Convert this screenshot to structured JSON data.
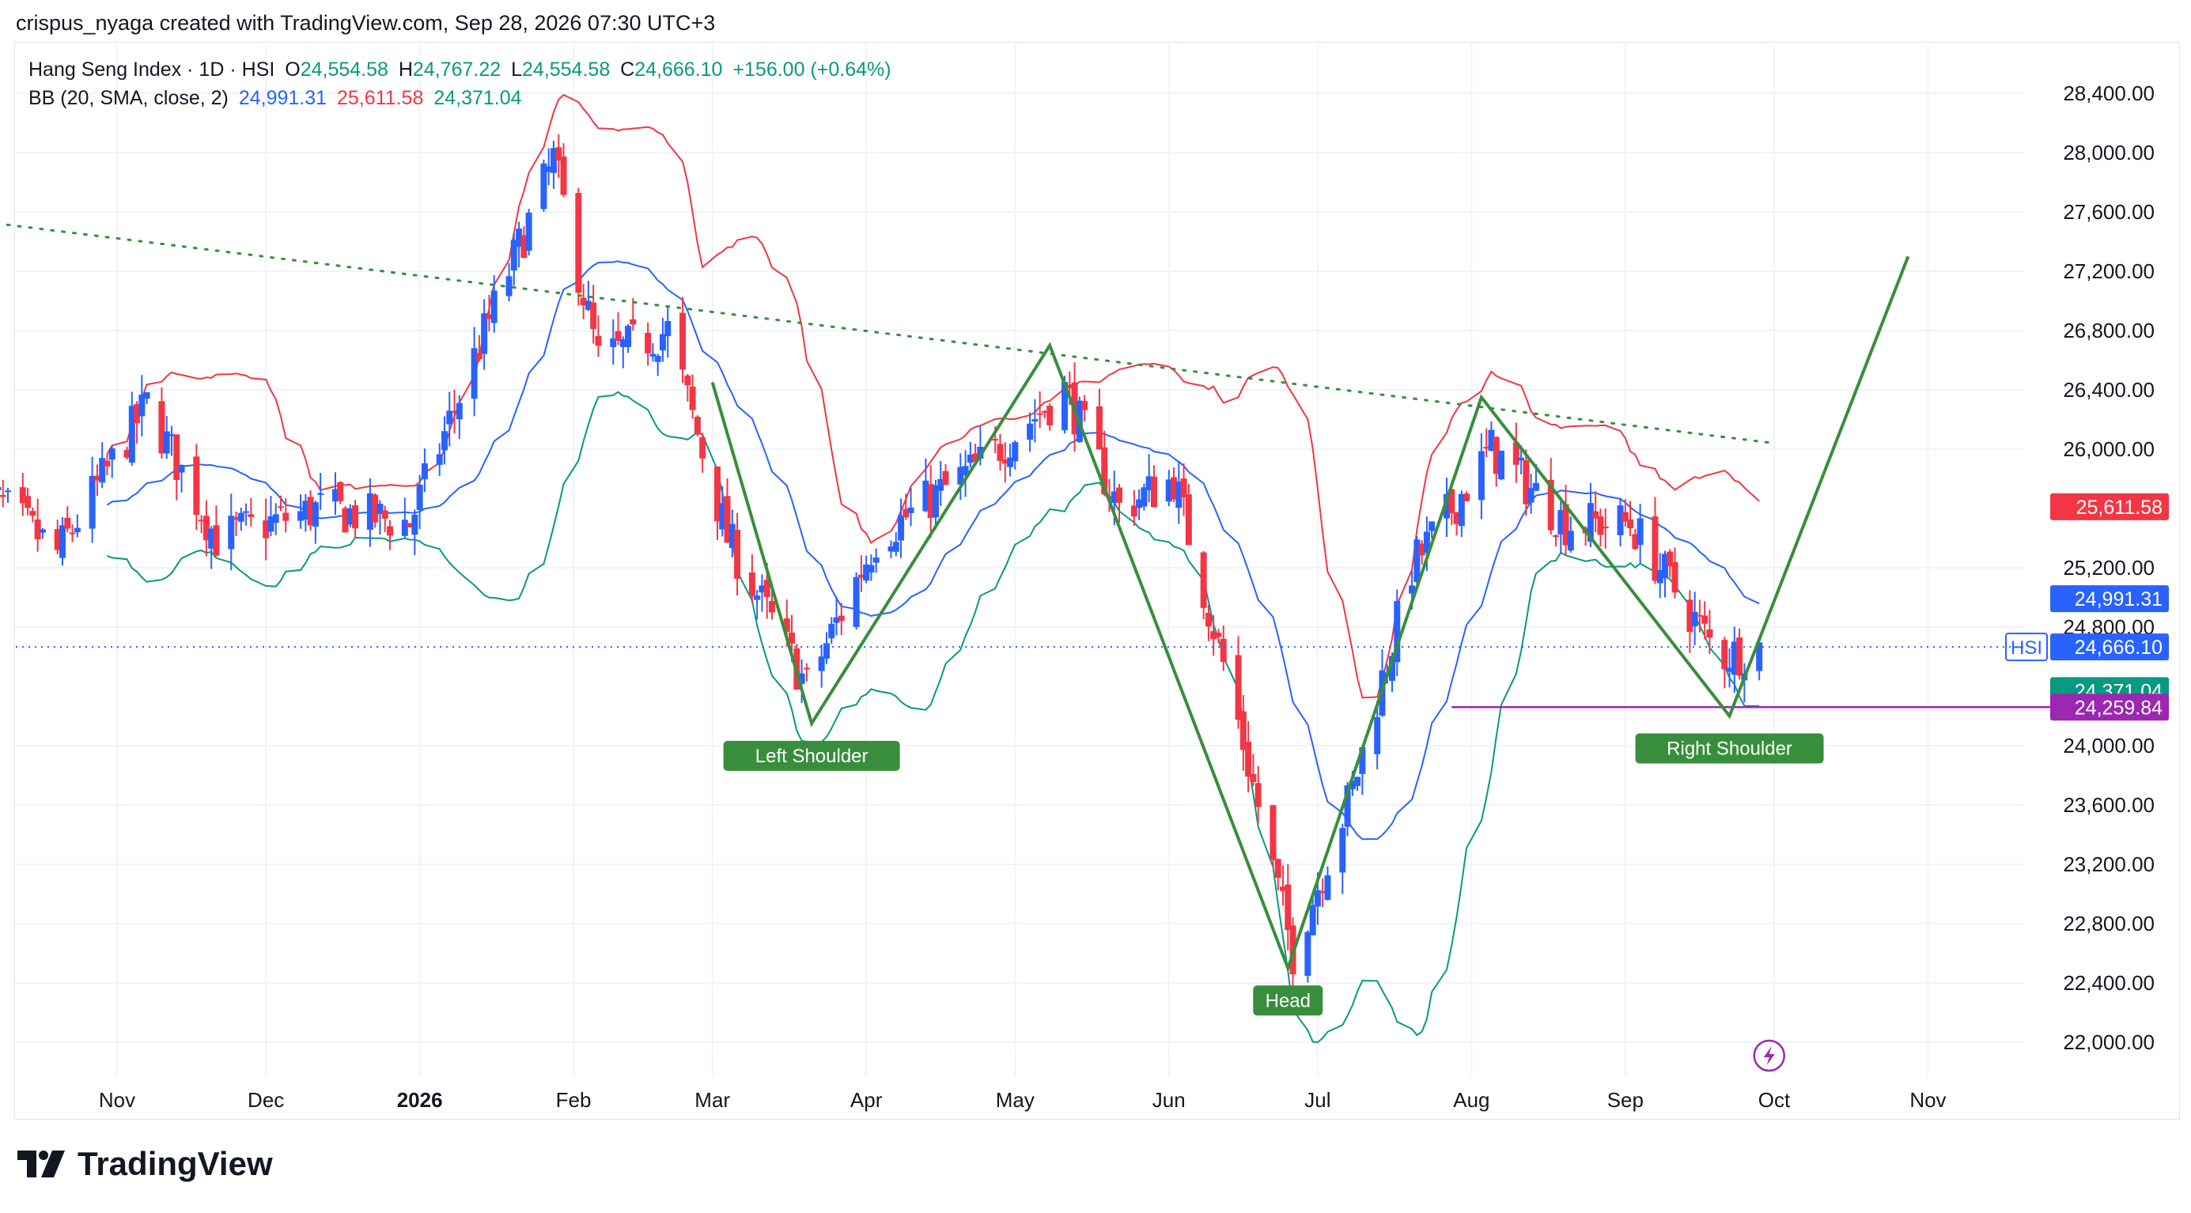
{
  "header": {
    "text": "crispus_nyaga created with TradingView.com, Sep 28, 2026 07:30 UTC+3"
  },
  "legend": {
    "symbol": "Hang Seng Index · 1D · HSI",
    "open_label": "O",
    "open": "24,554.58",
    "high_label": "H",
    "high": "24,767.22",
    "low_label": "L",
    "low": "24,554.58",
    "close_label": "C",
    "close": "24,666.10",
    "change": "+156.00 (+0.64%)",
    "bb_label": "BB (20, SMA, close, 2)",
    "bb_basis": "24,991.31",
    "bb_upper": "25,611.58",
    "bb_lower": "24,371.04"
  },
  "brand": {
    "name": "TradingView"
  },
  "colors": {
    "up": "#089981",
    "down": "#f23645",
    "candle_up": "#2962ff",
    "bb_basis": "#2962ff",
    "bb_upper": "#f23645",
    "bb_lower": "#089981",
    "pattern": "#388e3c",
    "neckline": "#9c27b0",
    "last_price": "#2962ff",
    "grid": "#f0f3fa"
  },
  "chart_data": {
    "type": "candlestick",
    "symbol": "HSI",
    "x_ticks": [
      "Nov",
      "Dec",
      "2026",
      "Feb",
      "Mar",
      "Apr",
      "May",
      "Jun",
      "Jul",
      "Aug",
      "Sep",
      "Oct",
      "Nov"
    ],
    "y_ticks": [
      "28,400.00",
      "28,000.00",
      "27,600.00",
      "27,200.00",
      "26,800.00",
      "26,400.00",
      "26,000.00",
      "25,200.00",
      "24,800.00",
      "24,000.00",
      "23,600.00",
      "23,200.00",
      "22,800.00",
      "22,400.00",
      "22,000.00"
    ],
    "ylim": [
      21800,
      28700
    ],
    "price_labels": [
      {
        "name": "bb_upper",
        "value": 25611.58,
        "text": "25,611.58",
        "color": "#f23645"
      },
      {
        "name": "bb_basis",
        "value": 24991.31,
        "text": "24,991.31",
        "color": "#2962ff"
      },
      {
        "name": "last",
        "value": 24666.1,
        "text": "24,666.10",
        "tag": "HSI",
        "color": "#2962ff"
      },
      {
        "name": "bb_lower",
        "value": 24371.04,
        "text": "24,371.04",
        "color": "#089981"
      },
      {
        "name": "neckline",
        "value": 24259.84,
        "text": "24,259.84",
        "color": "#9c27b0"
      }
    ],
    "trendline": {
      "style": "dotted",
      "from": [
        "2025-10-01",
        27550
      ],
      "to": [
        "2026-10-01",
        26040
      ]
    },
    "neckline": {
      "from": [
        "2026-07-28",
        24259.84
      ],
      "to": [
        "2026-11-30",
        24259.84
      ]
    },
    "pattern_path": [
      [
        "2026-03-01",
        26450
      ],
      [
        "2026-03-21",
        24150
      ],
      [
        "2026-05-08",
        26700
      ],
      [
        "2026-06-25",
        22500
      ],
      [
        "2026-08-03",
        26350
      ],
      [
        "2026-09-22",
        24200
      ],
      [
        "2026-10-28",
        27300
      ]
    ],
    "pattern_labels": [
      {
        "text": "Left Shoulder",
        "date": "2026-03-21",
        "price": 24150
      },
      {
        "text": "Head",
        "date": "2026-06-25",
        "price": 22500
      },
      {
        "text": "Right Shoulder",
        "date": "2026-09-22",
        "price": 24200
      }
    ],
    "series_close_anchors": [
      [
        "2025-10-06",
        25700
      ],
      [
        "2025-10-20",
        25300
      ],
      [
        "2025-11-07",
        26300
      ],
      [
        "2025-11-21",
        25400
      ],
      [
        "2025-12-12",
        25600
      ],
      [
        "2025-12-30",
        25500
      ],
      [
        "2026-01-13",
        26700
      ],
      [
        "2026-01-28",
        27950
      ],
      [
        "2026-02-06",
        26600
      ],
      [
        "2026-02-20",
        26800
      ],
      [
        "2026-03-04",
        25400
      ],
      [
        "2026-03-20",
        24400
      ],
      [
        "2026-04-03",
        25400
      ],
      [
        "2026-04-24",
        25900
      ],
      [
        "2026-05-11",
        26400
      ],
      [
        "2026-05-22",
        25600
      ],
      [
        "2026-06-02",
        25800
      ],
      [
        "2026-06-14",
        24300
      ],
      [
        "2026-06-26",
        22600
      ],
      [
        "2026-07-08",
        23700
      ],
      [
        "2026-07-20",
        25200
      ],
      [
        "2026-08-05",
        26000
      ],
      [
        "2026-08-20",
        25500
      ],
      [
        "2026-09-02",
        25500
      ],
      [
        "2026-09-20",
        24600
      ],
      [
        "2026-09-28",
        24666
      ]
    ]
  }
}
